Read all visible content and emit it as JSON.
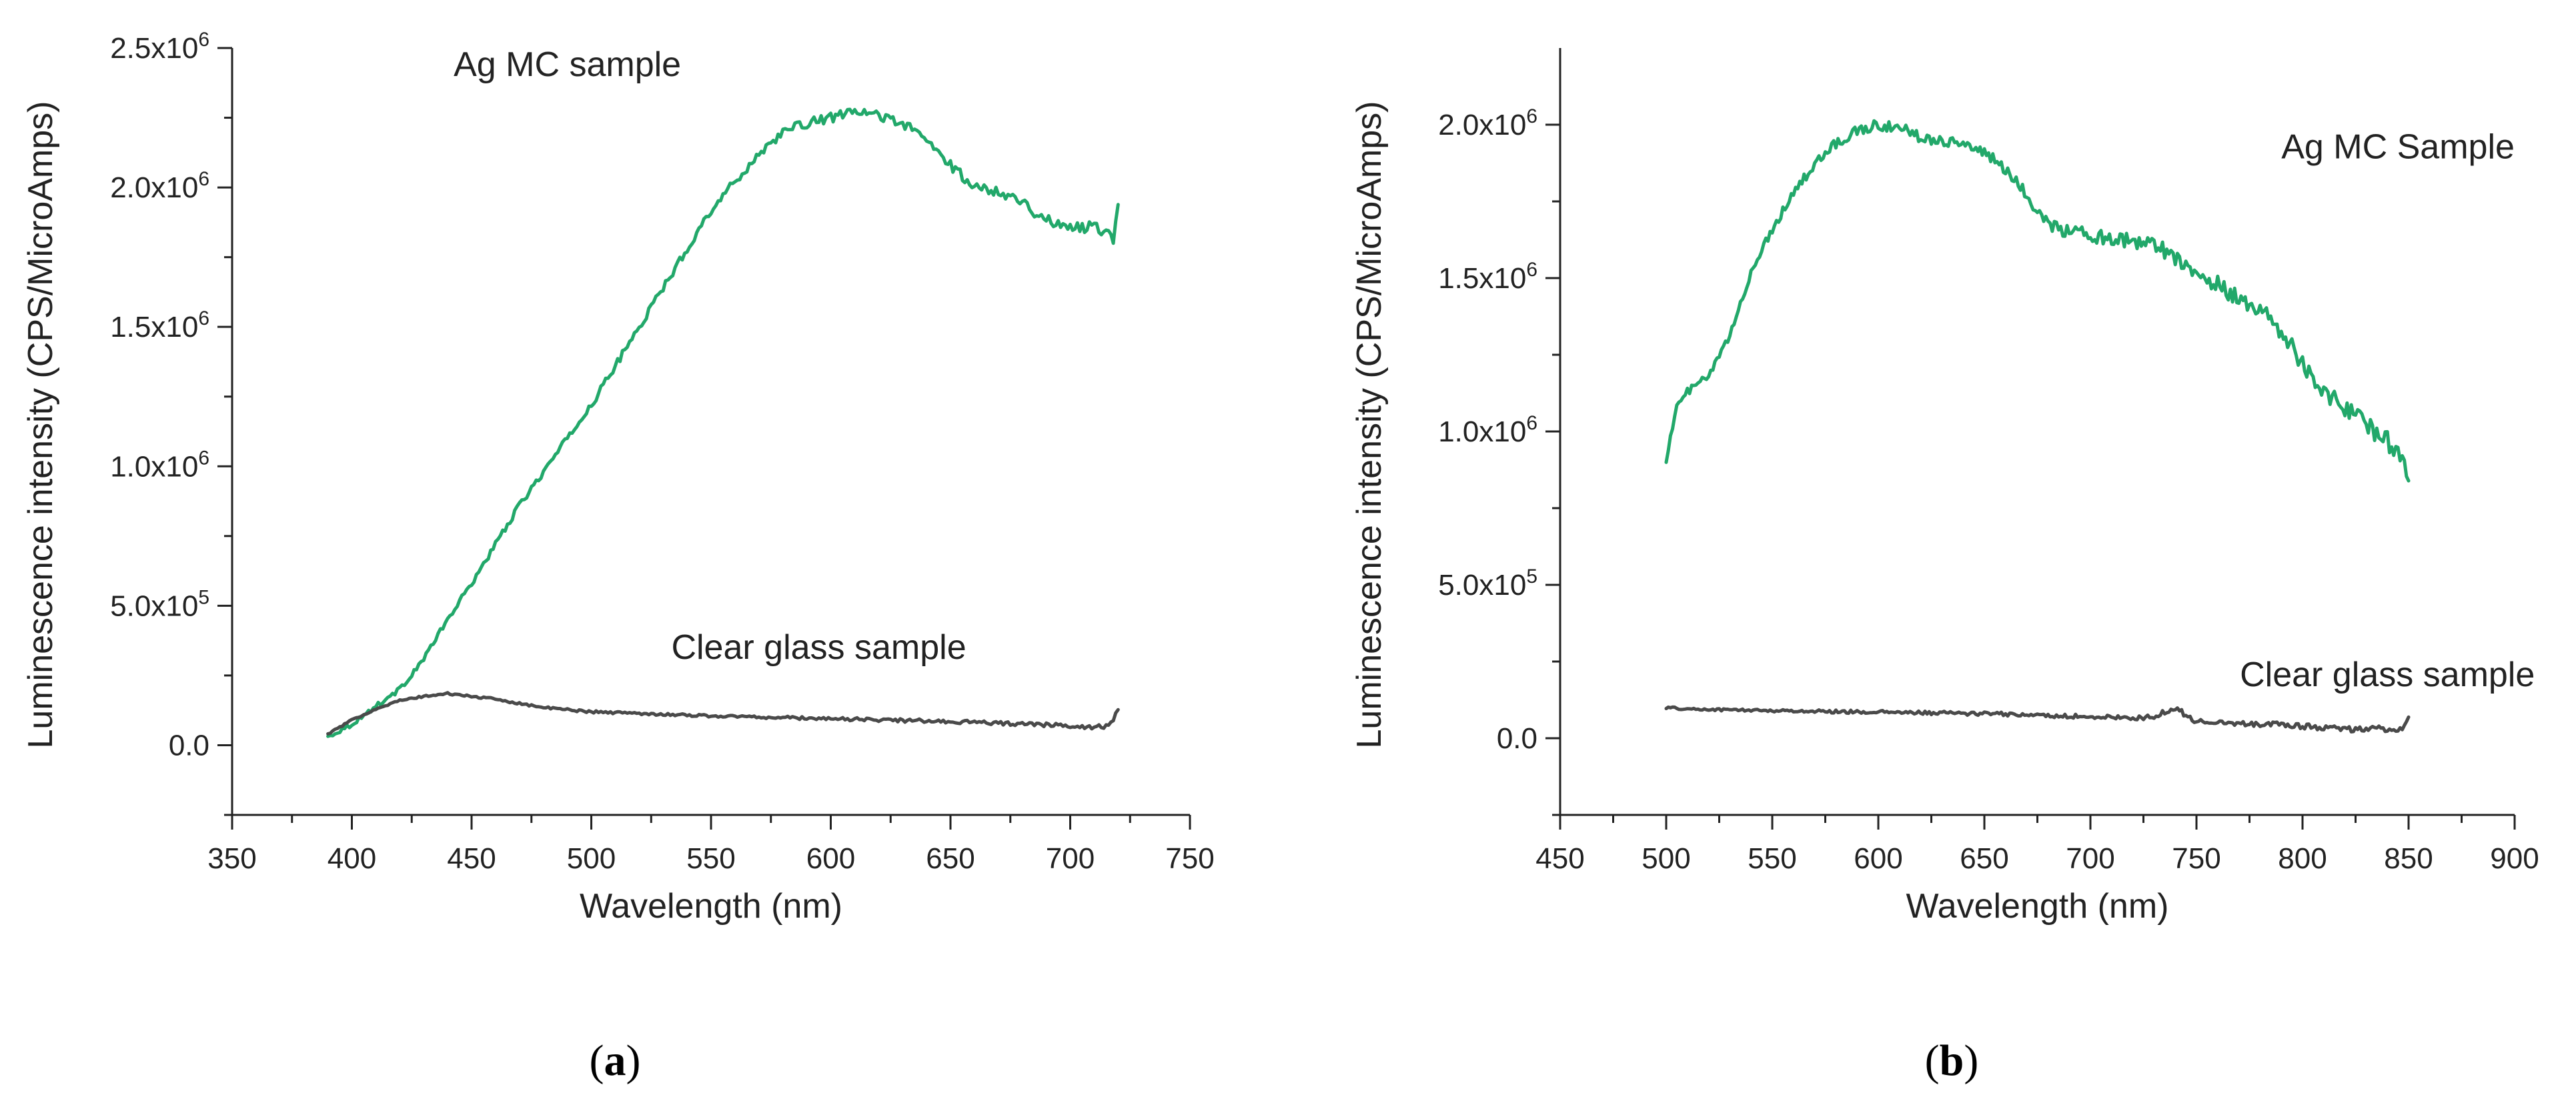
{
  "colors": {
    "ag": "#22A86A",
    "glass": "#4A4A4A"
  },
  "chart_data": [
    {
      "type": "line",
      "panel_label": "(a)",
      "panel_letter": "a",
      "xlabel": "Wavelength (nm)",
      "ylabel": "Luminescence intensity (CPS/MicroAmps)",
      "xlim": [
        350,
        750
      ],
      "ylim": [
        -250000,
        2500000
      ],
      "xticks": [
        350,
        400,
        450,
        500,
        550,
        600,
        650,
        700,
        750
      ],
      "yticks": [
        {
          "value": 0,
          "mantissa": "0.0",
          "exp": ""
        },
        {
          "value": 500000,
          "mantissa": "5.0x10",
          "exp": "5"
        },
        {
          "value": 1000000,
          "mantissa": "1.0x10",
          "exp": "6"
        },
        {
          "value": 1500000,
          "mantissa": "1.5x10",
          "exp": "6"
        },
        {
          "value": 2000000,
          "mantissa": "2.0x10",
          "exp": "6"
        },
        {
          "value": 2500000,
          "mantissa": "2.5x10",
          "exp": "6"
        }
      ],
      "annotations": [
        {
          "text": "Ag MC sample",
          "x": 490,
          "y": 2400000
        },
        {
          "text": "Clear glass sample",
          "x": 595,
          "y": 310000
        }
      ],
      "series": [
        {
          "name": "Ag MC sample",
          "color_key": "ag",
          "noise": 15000,
          "x": [
            390,
            400,
            410,
            420,
            430,
            440,
            450,
            460,
            470,
            480,
            490,
            500,
            510,
            520,
            530,
            540,
            550,
            560,
            570,
            580,
            590,
            600,
            610,
            620,
            630,
            640,
            650,
            660,
            670,
            680,
            690,
            700,
            710,
            715,
            718,
            720
          ],
          "y": [
            30000,
            75000,
            140000,
            200000,
            310000,
            450000,
            580000,
            720000,
            860000,
            980000,
            1100000,
            1220000,
            1360000,
            1500000,
            1640000,
            1780000,
            1920000,
            2020000,
            2120000,
            2200000,
            2230000,
            2250000,
            2270000,
            2260000,
            2230000,
            2170000,
            2080000,
            2000000,
            1990000,
            1950000,
            1880000,
            1860000,
            1860000,
            1840000,
            1820000,
            1950000
          ]
        },
        {
          "name": "Clear glass sample",
          "color_key": "glass",
          "noise": 5000,
          "x": [
            390,
            400,
            410,
            420,
            430,
            440,
            450,
            460,
            470,
            480,
            500,
            550,
            600,
            650,
            700,
            710,
            715,
            718,
            720
          ],
          "y": [
            40000,
            90000,
            130000,
            160000,
            175000,
            185000,
            175000,
            165000,
            150000,
            135000,
            120000,
            105000,
            95000,
            85000,
            70000,
            65000,
            68000,
            90000,
            130000
          ]
        }
      ]
    },
    {
      "type": "line",
      "panel_label": "(b)",
      "panel_letter": "b",
      "xlabel": "Wavelength (nm)",
      "ylabel": "Luminescence intensity (CPS/MicroAmps)",
      "xlim": [
        450,
        900
      ],
      "ylim": [
        -250000,
        2250000
      ],
      "xticks": [
        450,
        500,
        550,
        600,
        650,
        700,
        750,
        800,
        850,
        900
      ],
      "yticks": [
        {
          "value": 0,
          "mantissa": "0.0",
          "exp": ""
        },
        {
          "value": 500000,
          "mantissa": "5.0x10",
          "exp": "5"
        },
        {
          "value": 1000000,
          "mantissa": "1.0x10",
          "exp": "6"
        },
        {
          "value": 1500000,
          "mantissa": "1.5x10",
          "exp": "6"
        },
        {
          "value": 2000000,
          "mantissa": "2.0x10",
          "exp": "6"
        }
      ],
      "annotations": [
        {
          "text": "Ag MC Sample",
          "x": 845,
          "y": 1890000
        },
        {
          "text": "Clear glass sample",
          "x": 840,
          "y": 170000
        }
      ],
      "series": [
        {
          "name": "Ag MC Sample",
          "color_key": "ag",
          "noise": 22000,
          "x": [
            500,
            505,
            510,
            520,
            530,
            540,
            550,
            560,
            570,
            580,
            590,
            600,
            610,
            620,
            630,
            640,
            650,
            660,
            670,
            680,
            690,
            700,
            710,
            720,
            730,
            740,
            750,
            760,
            770,
            780,
            790,
            800,
            810,
            820,
            830,
            840,
            845,
            850
          ],
          "y": [
            910000,
            1080000,
            1130000,
            1180000,
            1310000,
            1520000,
            1660000,
            1780000,
            1870000,
            1940000,
            1980000,
            2000000,
            1990000,
            1960000,
            1950000,
            1940000,
            1910000,
            1850000,
            1770000,
            1680000,
            1650000,
            1640000,
            1630000,
            1620000,
            1610000,
            1570000,
            1520000,
            1480000,
            1430000,
            1400000,
            1330000,
            1220000,
            1130000,
            1080000,
            1020000,
            970000,
            920000,
            860000
          ]
        },
        {
          "name": "Clear glass sample",
          "color_key": "glass",
          "noise": 7000,
          "x": [
            500,
            510,
            550,
            600,
            650,
            700,
            720,
            730,
            735,
            740,
            745,
            750,
            770,
            800,
            820,
            840,
            845,
            848,
            850
          ],
          "y": [
            100000,
            95000,
            90000,
            85000,
            80000,
            70000,
            65000,
            70000,
            85000,
            100000,
            75000,
            55000,
            50000,
            40000,
            30000,
            30000,
            20000,
            40000,
            60000
          ]
        }
      ]
    }
  ]
}
